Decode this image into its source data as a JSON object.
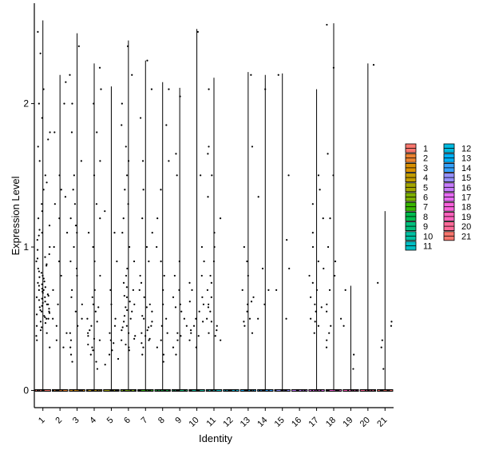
{
  "chart_data": {
    "type": "violin",
    "xlabel": "Identity",
    "ylabel": "Expression Level",
    "categories": [
      "1",
      "2",
      "3",
      "4",
      "5",
      "6",
      "7",
      "8",
      "9",
      "10",
      "11",
      "12",
      "13",
      "14",
      "15",
      "16",
      "17",
      "18",
      "19",
      "20",
      "21"
    ],
    "ylim": [
      -0.12,
      2.7
    ],
    "yticks": [
      0,
      1,
      2
    ],
    "grid": false,
    "legend": {
      "placement": "right",
      "columns": 2,
      "items": [
        {
          "label": "1",
          "color": "#F8766D"
        },
        {
          "label": "2",
          "color": "#EA8331"
        },
        {
          "label": "3",
          "color": "#D89000"
        },
        {
          "label": "4",
          "color": "#C09B00"
        },
        {
          "label": "5",
          "color": "#A3A500"
        },
        {
          "label": "6",
          "color": "#7CAE00"
        },
        {
          "label": "7",
          "color": "#39B600"
        },
        {
          "label": "8",
          "color": "#00BB4E"
        },
        {
          "label": "9",
          "color": "#00BF7D"
        },
        {
          "label": "10",
          "color": "#00C1A3"
        },
        {
          "label": "11",
          "color": "#00BFC4"
        },
        {
          "label": "12",
          "color": "#00BAE0"
        },
        {
          "label": "13",
          "color": "#00B0F6"
        },
        {
          "label": "14",
          "color": "#35A2FF"
        },
        {
          "label": "15",
          "color": "#9590FF"
        },
        {
          "label": "16",
          "color": "#C77CFF"
        },
        {
          "label": "17",
          "color": "#E76BF3"
        },
        {
          "label": "18",
          "color": "#FA62DB"
        },
        {
          "label": "19",
          "color": "#FF62BC"
        },
        {
          "label": "20",
          "color": "#FF6A98"
        },
        {
          "label": "21",
          "color": "#F8766D"
        }
      ]
    },
    "series": [
      {
        "category": "1",
        "max": 2.58,
        "points": [
          0.45,
          0.5,
          0.52,
          0.55,
          0.58,
          0.6,
          0.62,
          0.65,
          0.68,
          0.7,
          0.72,
          0.75,
          0.78,
          0.8,
          0.85,
          0.9,
          0.95,
          1.0,
          1.05,
          1.1,
          1.15,
          1.2,
          1.3,
          1.4,
          1.5,
          1.6,
          1.7,
          1.8,
          1.9,
          2.0,
          2.1,
          2.35,
          2.5,
          0.4,
          0.42,
          0.48,
          0.53,
          0.57,
          0.63,
          0.66,
          0.69,
          0.73,
          0.76,
          0.82,
          0.88,
          0.93,
          0.98,
          1.08,
          1.25,
          0.35,
          0.38,
          0.44,
          0.47,
          0.51,
          0.54,
          0.56,
          0.59,
          0.61,
          0.64,
          0.67,
          0.71,
          0.74,
          0.79,
          0.83,
          0.87,
          0.92,
          1.12,
          1.45,
          1.75,
          0.3,
          0.55,
          0.6,
          0.5,
          0.65,
          0.7
        ]
      },
      {
        "category": "2",
        "max": 2.2,
        "points": [
          0.3,
          0.35,
          0.4,
          0.5,
          0.6,
          0.8,
          0.9,
          1.0,
          1.1,
          1.2,
          1.35,
          1.4,
          1.5,
          1.8,
          2.0,
          2.15,
          0.45,
          0.7,
          1.3
        ]
      },
      {
        "category": "3",
        "max": 2.49,
        "points": [
          0.2,
          0.3,
          0.35,
          0.4,
          0.45,
          0.5,
          0.6,
          0.7,
          0.8,
          0.9,
          1.0,
          1.1,
          1.2,
          1.3,
          1.4,
          1.5,
          1.6,
          1.8,
          2.0,
          2.2,
          2.4,
          0.25,
          0.55,
          0.65,
          0.85,
          1.15
        ]
      },
      {
        "category": "4",
        "max": 2.28,
        "points": [
          0.15,
          0.2,
          0.25,
          0.3,
          0.32,
          0.35,
          0.38,
          0.4,
          0.42,
          0.45,
          0.5,
          0.55,
          0.6,
          0.65,
          0.7,
          0.8,
          0.9,
          1.0,
          1.1,
          1.2,
          1.3,
          1.5,
          1.6,
          1.8,
          2.0,
          2.1,
          2.25,
          0.28,
          0.36,
          0.48,
          0.58
        ]
      },
      {
        "category": "5",
        "max": 2.12,
        "points": [
          0.18,
          0.22,
          0.28,
          0.33,
          0.4,
          0.45,
          0.5,
          0.6,
          0.7,
          0.9,
          1.1,
          1.25,
          0.25,
          0.35
        ]
      },
      {
        "category": "6",
        "max": 2.44,
        "points": [
          0.3,
          0.32,
          0.35,
          0.38,
          0.4,
          0.42,
          0.45,
          0.48,
          0.5,
          0.52,
          0.55,
          0.58,
          0.6,
          0.62,
          0.65,
          0.7,
          0.75,
          0.8,
          0.85,
          0.9,
          1.0,
          1.1,
          1.2,
          1.3,
          1.4,
          1.5,
          1.6,
          1.7,
          1.85,
          2.0,
          2.2,
          2.4,
          0.28,
          0.36,
          0.44,
          0.56,
          0.66,
          0.72
        ]
      },
      {
        "category": "7",
        "max": 2.3,
        "points": [
          0.25,
          0.3,
          0.33,
          0.35,
          0.38,
          0.4,
          0.42,
          0.45,
          0.48,
          0.5,
          0.55,
          0.6,
          0.65,
          0.7,
          0.75,
          0.8,
          0.9,
          1.0,
          1.1,
          1.2,
          1.4,
          1.6,
          1.9,
          2.1,
          2.3,
          0.36,
          0.44,
          0.52,
          0.58
        ]
      },
      {
        "category": "8",
        "max": 2.15,
        "points": [
          0.2,
          0.25,
          0.3,
          0.35,
          0.4,
          0.5,
          0.6,
          0.7,
          0.8,
          0.9,
          1.0,
          1.2,
          1.4,
          1.6,
          1.85,
          2.1,
          0.45
        ]
      },
      {
        "category": "9",
        "max": 2.11,
        "points": [
          0.25,
          0.3,
          0.35,
          0.4,
          0.45,
          0.5,
          0.55,
          0.6,
          0.65,
          0.7,
          0.8,
          0.9,
          1.5,
          1.65,
          2.05,
          0.38,
          0.58
        ]
      },
      {
        "category": "10",
        "max": 2.52,
        "points": [
          0.3,
          0.35,
          0.38,
          0.4,
          0.42,
          0.45,
          0.5,
          0.55,
          0.6,
          0.65,
          0.7,
          0.75,
          0.8,
          0.9,
          1.0,
          1.5,
          2.5,
          0.48,
          0.62
        ]
      },
      {
        "category": "11",
        "max": 2.18,
        "points": [
          0.35,
          0.38,
          0.4,
          0.42,
          0.45,
          0.5,
          0.55,
          0.6,
          0.65,
          0.7,
          0.8,
          0.9,
          1.0,
          1.1,
          1.2,
          1.35,
          1.5,
          1.65,
          1.7,
          2.1,
          0.48,
          0.58,
          0.75
        ]
      },
      {
        "category": "12",
        "max": 0.0,
        "points": []
      },
      {
        "category": "13",
        "max": 2.22,
        "points": [
          0.4,
          0.45,
          0.5,
          0.55,
          0.6,
          0.65,
          0.7,
          0.8,
          0.9,
          1.0,
          1.7,
          2.2,
          0.48,
          0.62
        ]
      },
      {
        "category": "14",
        "max": 2.2,
        "points": [
          0.5,
          0.6,
          0.7,
          0.85,
          1.35,
          2.1
        ]
      },
      {
        "category": "15",
        "max": 2.21,
        "points": [
          0.5,
          0.7,
          0.85,
          1.05,
          1.5,
          2.2
        ]
      },
      {
        "category": "16",
        "max": 0.0,
        "points": []
      },
      {
        "category": "17",
        "max": 2.1,
        "points": [
          0.4,
          0.45,
          0.5,
          0.55,
          0.6,
          0.65,
          0.7,
          0.75,
          0.8,
          0.85,
          0.9,
          1.0,
          1.1,
          1.2,
          1.3,
          1.4,
          1.5,
          0.48,
          0.58
        ]
      },
      {
        "category": "18",
        "max": 2.56,
        "points": [
          0.3,
          0.35,
          0.4,
          0.45,
          0.5,
          0.55,
          0.6,
          0.7,
          0.8,
          0.9,
          1.0,
          1.2,
          1.5,
          1.65,
          2.25,
          2.55
        ]
      },
      {
        "category": "19",
        "max": 0.73,
        "points": [
          0.15,
          0.25,
          0.45,
          0.7
        ]
      },
      {
        "category": "20",
        "max": 2.28,
        "points": [
          2.27
        ]
      },
      {
        "category": "21",
        "max": 1.25,
        "points": [
          0.15,
          0.3,
          0.35,
          0.45,
          0.48,
          0.75
        ]
      }
    ]
  }
}
